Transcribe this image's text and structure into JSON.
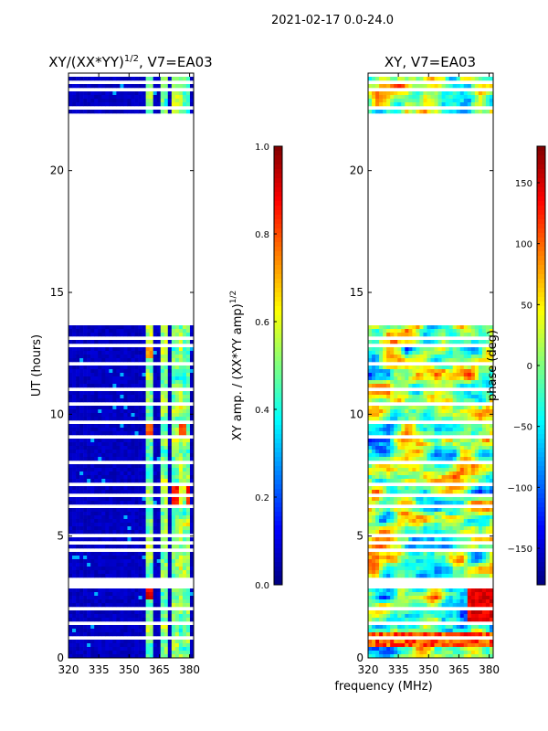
{
  "suptitle": "2021-02-17 0.0-24.0",
  "xlabel_shared": "frequency (MHz)",
  "colors": {
    "jet": [
      "#00007f",
      "#0000ff",
      "#007fff",
      "#00ffff",
      "#7fff7f",
      "#ffff00",
      "#ff7f00",
      "#ff0000",
      "#7f0000"
    ]
  },
  "chart_data": [
    {
      "type": "heatmap",
      "title_main": "XY/(XX*YY)",
      "title_sup": "1/2",
      "title_tail": ", V7=EA03",
      "ylabel": "UT (hours)",
      "xlim": [
        320,
        382
      ],
      "ylim": [
        0,
        24
      ],
      "xticks": [
        320,
        335,
        350,
        365,
        380
      ],
      "yticks": [
        0,
        5,
        10,
        15,
        20
      ],
      "data_gap_hours": [
        13.6,
        22.4
      ],
      "band_regions_mhz": [
        [
          359,
          362
        ],
        [
          363,
          364.5
        ],
        [
          366.5,
          369
        ],
        [
          371,
          374
        ],
        [
          375.5,
          377.5
        ],
        [
          378.5,
          381
        ]
      ],
      "colorbar": {
        "label_main": "XY amp. / (XX*YY amp)",
        "label_sup": "1/2",
        "range": [
          0.0,
          1.0
        ],
        "ticks": [
          "0.0",
          "0.2",
          "0.4",
          "0.6",
          "0.8",
          "1.0"
        ]
      }
    },
    {
      "type": "heatmap",
      "title_main": "XY, V7=EA03",
      "ylabel": "",
      "xlim": [
        320,
        382
      ],
      "ylim": [
        0,
        24
      ],
      "xticks": [
        320,
        335,
        350,
        365,
        380
      ],
      "yticks": [
        0,
        5,
        10,
        15,
        20
      ],
      "data_gap_hours": [
        13.6,
        22.4
      ],
      "colorbar": {
        "label_main": "phase (deg)",
        "range": [
          -180,
          180
        ],
        "ticks": [
          "−150",
          "−100",
          "−50",
          "0",
          "50",
          "100",
          "150"
        ]
      }
    }
  ]
}
